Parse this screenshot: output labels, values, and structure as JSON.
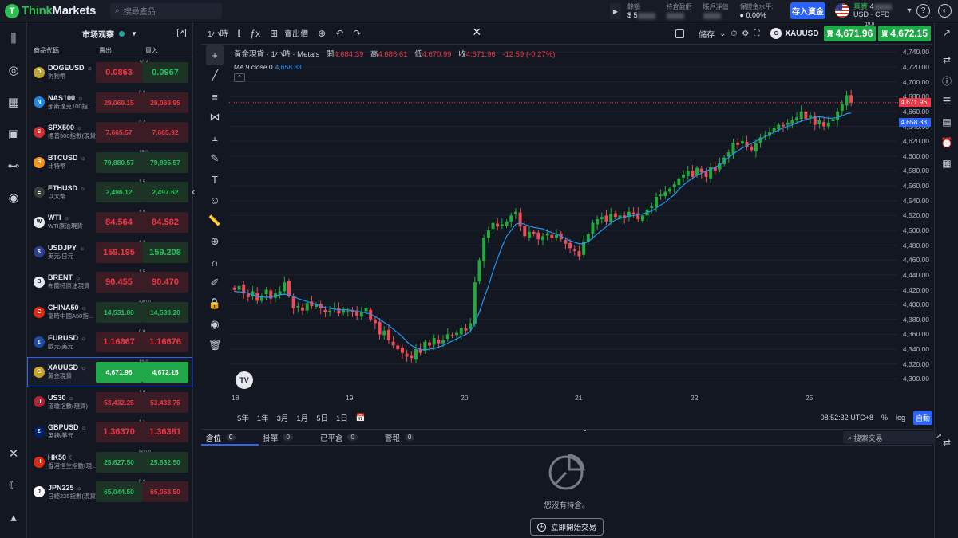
{
  "brand": {
    "name_prefix": "Think",
    "name_suffix": "Markets",
    "mark": "T"
  },
  "search": {
    "placeholder": "搜尋產品"
  },
  "account": {
    "balance_label": "餘額",
    "balance_value": "$ 5",
    "pnl_label": "持倉盈虧",
    "equity_label": "賬戶淨值",
    "margin_label": "保證金水平:",
    "margin_value": "0.00%"
  },
  "deposit_label": "存入資金",
  "real": {
    "label": "真實",
    "value": "4",
    "currency": "USD · CFD"
  },
  "watchlist": {
    "title": "市场观察",
    "col_symbol": "商品代碼",
    "col_sell": "賣出",
    "col_buy": "買入",
    "rows": [
      {
        "code": "DOGEUSD",
        "tag": "☼",
        "name": "狗狗幣",
        "sell": "0.0863",
        "buy": "0.0967",
        "spread": "10.4",
        "sell_c": "red",
        "buy_c": "green",
        "icon": "D",
        "icon_bg": "#c2a633"
      },
      {
        "code": "NAS100",
        "tag": "☼",
        "name": "那斯達克100指...",
        "sell": "29,069.15",
        "buy": "29,069.95",
        "spread": "0.8",
        "sell_c": "red",
        "buy_c": "red",
        "icon": "N",
        "icon_bg": "#1e88e5"
      },
      {
        "code": "SPX500",
        "tag": "☼",
        "name": "標普500指數(現貨)",
        "sell": "7,665.57",
        "buy": "7,665.92",
        "spread": "0.4",
        "sell_c": "red",
        "buy_c": "red",
        "icon": "S",
        "icon_bg": "#d32f2f"
      },
      {
        "code": "BTCUSD",
        "tag": "☼",
        "name": "比特幣",
        "sell": "79,880.57",
        "buy": "79,895.57",
        "spread": "15.0",
        "sell_c": "green",
        "buy_c": "green",
        "icon": "B",
        "icon_bg": "#f7931a"
      },
      {
        "code": "ETHUSD",
        "tag": "☼",
        "name": "以太幣",
        "sell": "2,496.12",
        "buy": "2,497.62",
        "spread": "1.5",
        "sell_c": "green",
        "buy_c": "green",
        "icon": "E",
        "icon_bg": "#3c3c3d"
      },
      {
        "code": "WTI",
        "tag": "☼",
        "name": "WTI原油現貨",
        "sell": "84.564",
        "buy": "84.582",
        "spread": "1.8",
        "sell_c": "red",
        "buy_c": "red",
        "icon": "W",
        "icon_bg": "#e6e8ee"
      },
      {
        "code": "USDJPY",
        "tag": "☼",
        "name": "美元/日元",
        "sell": "159.195",
        "buy": "159.208",
        "spread": "1.3",
        "sell_c": "red",
        "buy_c": "green",
        "icon": "$",
        "icon_bg": "#2c3e8f"
      },
      {
        "code": "BRENT",
        "tag": "☼",
        "name": "布蘭特原油現貨",
        "sell": "90.455",
        "buy": "90.470",
        "spread": "1.5",
        "sell_c": "red",
        "buy_c": "red",
        "icon": "B",
        "icon_bg": "#e6e8ee"
      },
      {
        "code": "CHINA50",
        "tag": "☼",
        "name": "富時中國A50指...",
        "sell": "14,531.80",
        "buy": "14,538.20",
        "spread": "640.0",
        "sell_c": "green",
        "buy_c": "green",
        "icon": "C",
        "icon_bg": "#de2910"
      },
      {
        "code": "EURUSD",
        "tag": "☼",
        "name": "歐元/美元",
        "sell": "1.16667",
        "buy": "1.16676",
        "spread": "0.9",
        "sell_c": "red",
        "buy_c": "red",
        "icon": "€",
        "icon_bg": "#1e4aa8"
      },
      {
        "code": "XAUUSD",
        "tag": "☼",
        "name": "黃金現貨",
        "sell": "4,671.96",
        "buy": "4,672.15",
        "spread": "19.0",
        "sell_c": "greensolid",
        "buy_c": "greensolid",
        "icon": "G",
        "icon_bg": "#c9a227"
      },
      {
        "code": "US30",
        "tag": "☼",
        "name": "道瓊指數(現貨)",
        "sell": "53,432.25",
        "buy": "53,433.75",
        "spread": "1.5",
        "sell_c": "red",
        "buy_c": "red",
        "icon": "U",
        "icon_bg": "#b22234"
      },
      {
        "code": "GBPUSD",
        "tag": "☼",
        "name": "英鎊/美元",
        "sell": "1.36370",
        "buy": "1.36381",
        "spread": "1.1",
        "sell_c": "red",
        "buy_c": "red",
        "icon": "£",
        "icon_bg": "#012169"
      },
      {
        "code": "HK50",
        "tag": "☾",
        "name": "香港恒生指數(現...",
        "sell": "25,627.50",
        "buy": "25,632.50",
        "spread": "500.0",
        "sell_c": "green",
        "buy_c": "green",
        "icon": "H",
        "icon_bg": "#de2910"
      },
      {
        "code": "JPN225",
        "tag": "☼",
        "name": "日經225指數(現貨)",
        "sell": "65,044.50",
        "buy": "65,053.50",
        "spread": "9.0",
        "sell_c": "green",
        "buy_c": "red",
        "icon": "J",
        "icon_bg": "#ffffff"
      }
    ]
  },
  "chart_toolbar": {
    "interval": "1小時",
    "side": "賣出價",
    "save": "儲存",
    "symbol": "XAUUSD",
    "sell_big": "4,671.96",
    "sell_small": "賣",
    "buy_big": "4,672.15",
    "buy_small": "買",
    "spread": "19.0"
  },
  "legend": {
    "title": "黃金現貨 · 1小時 · Metals",
    "o_label": "開",
    "o": "4,684.39",
    "h_label": "高",
    "h": "4,686.61",
    "l_label": "低",
    "l": "4,670.99",
    "c_label": "收",
    "c": "4,671.96",
    "change": "-12.59 (-0.27%)",
    "ma_label": "MA 9 close 0",
    "ma_value": "4,658.33"
  },
  "range_bar": {
    "ranges": [
      "5年",
      "1年",
      "3月",
      "1月",
      "5日",
      "1日"
    ],
    "time": "08:52:32 UTC+8",
    "pct": "%",
    "log": "log",
    "auto": "自動"
  },
  "bottom": {
    "tabs": [
      {
        "label": "倉位",
        "count": "0"
      },
      {
        "label": "掛單",
        "count": "0"
      },
      {
        "label": "已平倉",
        "count": "0"
      },
      {
        "label": "警報",
        "count": "0"
      }
    ],
    "search_placeholder": "搜索交易",
    "empty_msg": "您沒有持倉。",
    "start_btn": "立即開始交易"
  },
  "chart_data": {
    "type": "candlestick",
    "title": "黃金現貨 · 1小時 · Metals",
    "y_ticks": [
      4300,
      4320,
      4340,
      4360,
      4380,
      4400,
      4420,
      4440,
      4460,
      4480,
      4500,
      4520,
      4540,
      4560,
      4580,
      4600,
      4620,
      4640,
      4660,
      4680,
      4700,
      4720,
      4740
    ],
    "ylim": [
      4280,
      4750
    ],
    "x_ticks": [
      "18",
      "19",
      "20",
      "21",
      "22",
      "25"
    ],
    "last_price": "4,671.96",
    "ma_price": "4,658.33",
    "closes": [
      4420,
      4425,
      4415,
      4410,
      4418,
      4405,
      4412,
      4420,
      4408,
      4415,
      4418,
      4430,
      4412,
      4395,
      4398,
      4392,
      4402,
      4398,
      4400,
      4395,
      4390,
      4392,
      4396,
      4388,
      4394,
      4392,
      4390,
      4385,
      4390,
      4395,
      4380,
      4375,
      4360,
      4365,
      4352,
      4345,
      4340,
      4335,
      4330,
      4328,
      4340,
      4335,
      4350,
      4345,
      4355,
      4348,
      4352,
      4360,
      4358,
      4362,
      4368,
      4365,
      4375,
      4430,
      4460,
      4490,
      4500,
      4510,
      4505,
      4508,
      4512,
      4520,
      4525,
      4505,
      4492,
      4498,
      4495,
      4488,
      4492,
      4496,
      4490,
      4494,
      4488,
      4482,
      4476,
      4472,
      4465,
      4485,
      4495,
      4510,
      4515,
      4518,
      4512,
      4522,
      4518,
      4520,
      4516,
      4525,
      4522,
      4515,
      4520,
      4528,
      4532,
      4545,
      4548,
      4552,
      4556,
      4562,
      4570,
      4575,
      4580,
      4572,
      4584,
      4578,
      4572,
      4585,
      4580,
      4590,
      4598,
      4605,
      4618,
      4615,
      4620,
      4612,
      4608,
      4618,
      4625,
      4628,
      4632,
      4638,
      4642,
      4640,
      4645,
      4648,
      4652,
      4660,
      4650,
      4655,
      4642,
      4648,
      4640,
      4645,
      4650,
      4660,
      4670,
      4682,
      4672
    ],
    "ma": [
      4418,
      4417,
      4417,
      4415,
      4413,
      4411,
      4410,
      4410,
      4410,
      4412,
      4413,
      4414,
      4413,
      4411,
      4408,
      4406,
      4404,
      4402,
      4400,
      4398,
      4396,
      4395,
      4394,
      4393,
      4393,
      4393,
      4392,
      4391,
      4390,
      4389,
      4387,
      4384,
      4380,
      4376,
      4372,
      4367,
      4362,
      4357,
      4350,
      4345,
      4342,
      4340,
      4339,
      4340,
      4341,
      4343,
      4345,
      4348,
      4351,
      4354,
      4357,
      4360,
      4364,
      4375,
      4390,
      4408,
      4425,
      4445,
      4462,
      4478,
      4492,
      4500,
      4508,
      4510,
      4508,
      4506,
      4504,
      4503,
      4502,
      4499,
      4497,
      4495,
      4492,
      4489,
      4486,
      4484,
      4482,
      4482,
      4485,
      4490,
      4495,
      4500,
      4505,
      4510,
      4514,
      4516,
      4518,
      4519,
      4520,
      4521,
      4522,
      4524,
      4526,
      4530,
      4534,
      4538,
      4543,
      4548,
      4555,
      4561,
      4566,
      4570,
      4574,
      4577,
      4580,
      4582,
      4585,
      4588,
      4593,
      4598,
      4603,
      4607,
      4611,
      4614,
      4617,
      4620,
      4623,
      4626,
      4629,
      4632,
      4635,
      4638,
      4640,
      4642,
      4645,
      4647,
      4649,
      4651,
      4652,
      4653,
      4652,
      4651,
      4651,
      4652,
      4654,
      4657,
      4658
    ]
  }
}
